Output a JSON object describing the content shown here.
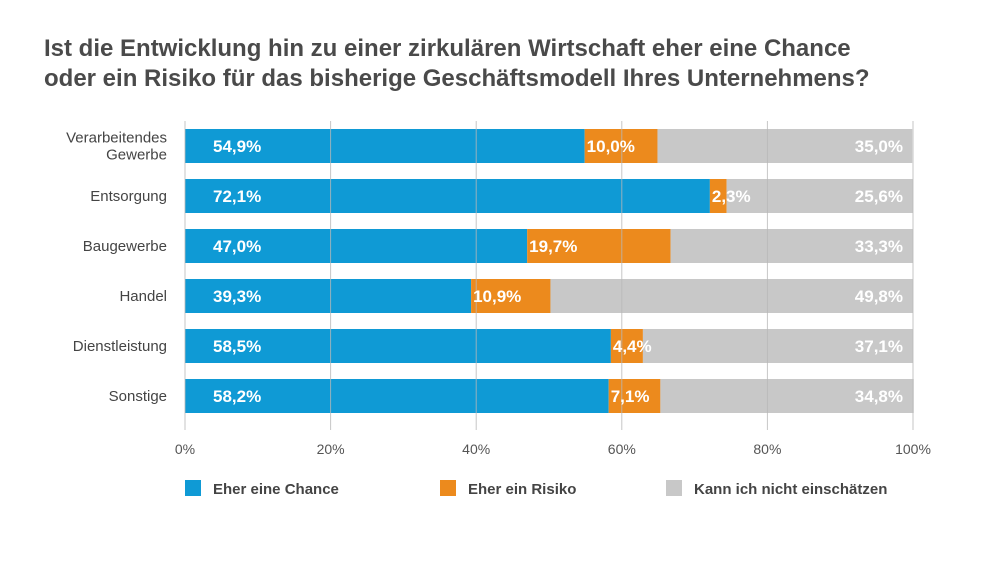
{
  "chart_data": {
    "type": "bar",
    "orientation": "horizontal",
    "stacked": true,
    "title_lines": [
      "Ist die Entwicklung hin zu einer zirkulären Wirtschaft eher eine Chance",
      "oder ein Risiko für das bisherige Geschäftsmodell Ihres Unternehmens?"
    ],
    "categories": [
      [
        "Verarbeitendes",
        "Gewerbe"
      ],
      [
        "Entsorgung"
      ],
      [
        "Baugewerbe"
      ],
      [
        "Handel"
      ],
      [
        "Dienstleistung"
      ],
      [
        "Sonstige"
      ]
    ],
    "series": [
      {
        "name": "Eher eine Chance",
        "color": "#0f9ad5",
        "values": [
          54.9,
          72.1,
          47.0,
          39.3,
          58.5,
          58.2
        ],
        "labels": [
          "54,9%",
          "72,1%",
          "47,0%",
          "39,3%",
          "58,5%",
          "58,2%"
        ]
      },
      {
        "name": "Eher ein Risiko",
        "color": "#ec8a1d",
        "values": [
          10.0,
          2.3,
          19.7,
          10.9,
          4.4,
          7.1
        ],
        "labels": [
          "10,0%",
          "2,3%",
          "19,7%",
          "10,9%",
          "4,4%",
          "7,1%"
        ]
      },
      {
        "name": "Kann ich nicht einschätzen",
        "color": "#c8c8c8",
        "values": [
          35.0,
          25.6,
          33.3,
          49.8,
          37.1,
          34.8
        ],
        "labels": [
          "35,0%",
          "25,6%",
          "33,3%",
          "49,8%",
          "37,1%",
          "34,8%"
        ]
      }
    ],
    "xlim": [
      0,
      100
    ],
    "xticks": [
      0,
      20,
      40,
      60,
      80,
      100
    ],
    "xtick_labels": [
      "0%",
      "20%",
      "40%",
      "60%",
      "80%",
      "100%"
    ],
    "grid": true,
    "legend_position": "bottom"
  }
}
